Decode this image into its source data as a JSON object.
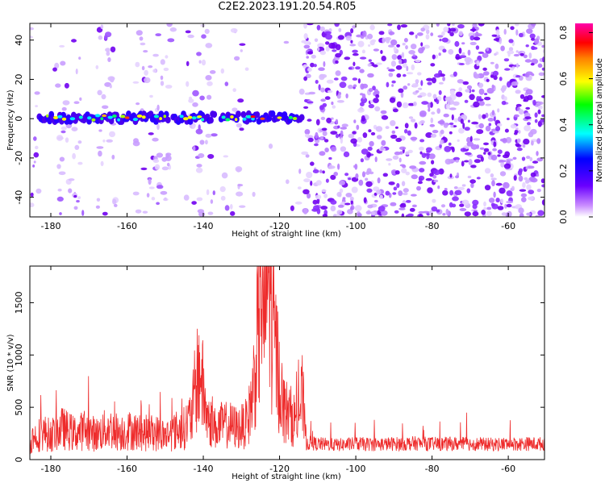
{
  "title": "C2E2.2023.191.20.54.R05",
  "colorbar_label": "Normalized spectral amplitude",
  "colors": {
    "snr_line": "#ee2b2b",
    "background": "#ffffff",
    "axes": "#000000"
  },
  "chart_data": [
    {
      "type": "heatmap",
      "xlabel": "Height of straight line (km)",
      "ylabel": "Frequency (Hz)",
      "xlim": [
        -185.5,
        -50.5
      ],
      "ylim": [
        -50,
        48.5
      ],
      "xticks": [
        -180,
        -160,
        -140,
        -120,
        -100,
        -80,
        -60
      ],
      "yticks": [
        -40,
        -20,
        0,
        20,
        40
      ],
      "colorbar": {
        "label": "Normalized spectral amplitude",
        "range": [
          0,
          0.84
        ],
        "ticks": [
          0.0,
          0.2,
          0.4,
          0.6,
          0.8
        ]
      },
      "features": [
        {
          "description_source": "visible band",
          "x_range": [
            -183,
            -114
          ],
          "y_center": 0.5,
          "peak_amplitude": 0.84
        },
        {
          "x_range": [
            -113,
            -50.5
          ],
          "noise_level": "high"
        }
      ],
      "grid": false
    },
    {
      "type": "line",
      "xlabel": "Height of straight line (km)",
      "ylabel": "SNR (10 * v/v)",
      "xlim": [
        -185.5,
        -50.5
      ],
      "ylim": [
        0,
        1850
      ],
      "xticks": [
        -180,
        -160,
        -140,
        -120,
        -100,
        -80,
        -60
      ],
      "yticks": [
        0,
        500,
        1000,
        1500
      ],
      "series": [
        {
          "points": [
            [
              -185,
              200
            ],
            [
              -182,
              260
            ],
            [
              -180,
              230
            ],
            [
              -177,
              300
            ],
            [
              -174,
              250
            ],
            [
              -171,
              280
            ],
            [
              -168,
              240
            ],
            [
              -165,
              300
            ],
            [
              -162,
              260
            ],
            [
              -159,
              280
            ],
            [
              -156,
              250
            ],
            [
              -153,
              260
            ],
            [
              -150,
              230
            ],
            [
              -147,
              280
            ],
            [
              -145,
              300
            ],
            [
              -143,
              420
            ],
            [
              -142,
              700
            ],
            [
              -141,
              880
            ],
            [
              -140,
              650
            ],
            [
              -139,
              400
            ],
            [
              -137,
              300
            ],
            [
              -135,
              330
            ],
            [
              -133,
              330
            ],
            [
              -131,
              300
            ],
            [
              -129,
              330
            ],
            [
              -128,
              430
            ],
            [
              -127,
              650
            ],
            [
              -126,
              1050
            ],
            [
              -125,
              1500
            ],
            [
              -124.5,
              1780
            ],
            [
              -124,
              1400
            ],
            [
              -123.5,
              1650
            ],
            [
              -123,
              1850
            ],
            [
              -122.5,
              1600
            ],
            [
              -122,
              1350
            ],
            [
              -121,
              1050
            ],
            [
              -120,
              750
            ],
            [
              -119,
              500
            ],
            [
              -118,
              450
            ],
            [
              -117,
              420
            ],
            [
              -116,
              380
            ],
            [
              -115,
              450
            ],
            [
              -114,
              600
            ],
            [
              -113,
              160
            ],
            [
              -110,
              150
            ],
            [
              -105,
              140
            ],
            [
              -100,
              150
            ],
            [
              -95,
              145
            ],
            [
              -90,
              150
            ],
            [
              -85,
              155
            ],
            [
              -80,
              150
            ],
            [
              -75,
              150
            ],
            [
              -70,
              150
            ],
            [
              -65,
              145
            ],
            [
              -60,
              150
            ],
            [
              -55,
              150
            ],
            [
              -51,
              150
            ]
          ]
        }
      ],
      "grid": false
    }
  ]
}
